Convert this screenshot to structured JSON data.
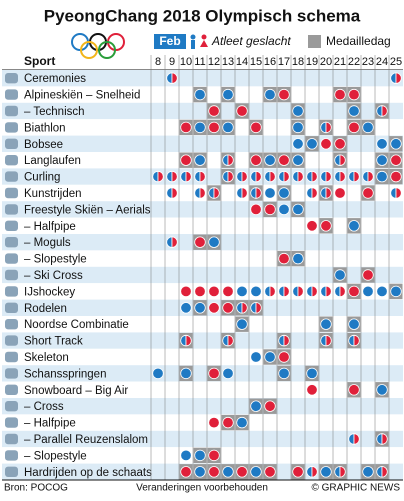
{
  "header": {
    "title": "PyeongChang 2018 Olympisch schema",
    "month": "Feb",
    "legend_gender": "Atleet geslacht",
    "legend_medal": "Medailledag",
    "sport_label": "Sport"
  },
  "days": [
    8,
    9,
    10,
    11,
    12,
    13,
    14,
    15,
    16,
    17,
    18,
    19,
    20,
    21,
    22,
    23,
    24,
    25
  ],
  "colors": {
    "men": "#1f7ac4",
    "women": "#e0203a",
    "medal": "#9a9a9a",
    "row_alt": "#dcebf6"
  },
  "table": {
    "rows": [
      {
        "label": "Ceremonies",
        "events": [
          [
            9,
            "mixed",
            false
          ],
          [
            25,
            "mixed",
            false
          ]
        ]
      },
      {
        "label": "Alpineskiën – Snelheid",
        "events": [
          [
            11,
            "men",
            true
          ],
          [
            13,
            "men",
            true
          ],
          [
            16,
            "men",
            true
          ],
          [
            17,
            "women",
            true
          ],
          [
            21,
            "women",
            true
          ],
          [
            22,
            "women",
            true
          ]
        ]
      },
      {
        "label": "– Technisch",
        "events": [
          [
            12,
            "women",
            true
          ],
          [
            14,
            "women",
            true
          ],
          [
            18,
            "men",
            true
          ],
          [
            22,
            "men",
            true
          ],
          [
            24,
            "mixed",
            true
          ]
        ]
      },
      {
        "label": "Biathlon",
        "events": [
          [
            10,
            "women",
            true
          ],
          [
            11,
            "men",
            true
          ],
          [
            12,
            "women",
            true
          ],
          [
            13,
            "men",
            true
          ],
          [
            15,
            "women",
            true
          ],
          [
            18,
            "men",
            true
          ],
          [
            20,
            "mixed",
            true
          ],
          [
            22,
            "women",
            true
          ],
          [
            23,
            "men",
            true
          ]
        ]
      },
      {
        "label": "Bobsee",
        "events": [
          [
            18,
            "men",
            false
          ],
          [
            19,
            "men",
            true
          ],
          [
            20,
            "women",
            false
          ],
          [
            21,
            "women",
            true
          ],
          [
            24,
            "men",
            false
          ],
          [
            25,
            "men",
            true
          ]
        ]
      },
      {
        "label": "Langlaufen",
        "events": [
          [
            10,
            "women",
            true
          ],
          [
            11,
            "men",
            true
          ],
          [
            13,
            "mixed",
            true
          ],
          [
            15,
            "women",
            true
          ],
          [
            16,
            "men",
            true
          ],
          [
            17,
            "women",
            true
          ],
          [
            18,
            "men",
            true
          ],
          [
            21,
            "mixed",
            true
          ],
          [
            24,
            "men",
            true
          ],
          [
            25,
            "women",
            true
          ]
        ]
      },
      {
        "label": "Curling",
        "events": [
          [
            8,
            "mixed",
            false
          ],
          [
            9,
            "mixed",
            false
          ],
          [
            10,
            "mixed",
            false
          ],
          [
            11,
            "mixed",
            false
          ],
          [
            13,
            "mixed",
            true
          ],
          [
            14,
            "mixed",
            false
          ],
          [
            15,
            "mixed",
            false
          ],
          [
            16,
            "mixed",
            false
          ],
          [
            17,
            "mixed",
            false
          ],
          [
            18,
            "mixed",
            false
          ],
          [
            19,
            "mixed",
            false
          ],
          [
            20,
            "mixed",
            false
          ],
          [
            21,
            "mixed",
            false
          ],
          [
            22,
            "mixed",
            false
          ],
          [
            23,
            "mixed",
            false
          ],
          [
            24,
            "men",
            true
          ],
          [
            25,
            "women",
            true
          ]
        ]
      },
      {
        "label": "Kunstrijden",
        "events": [
          [
            9,
            "mixed",
            false
          ],
          [
            11,
            "mixed",
            false
          ],
          [
            12,
            "mixed",
            true
          ],
          [
            14,
            "mixed",
            false
          ],
          [
            15,
            "mixed",
            true
          ],
          [
            16,
            "men",
            false
          ],
          [
            17,
            "men",
            true
          ],
          [
            19,
            "mixed",
            false
          ],
          [
            20,
            "mixed",
            true
          ],
          [
            21,
            "women",
            false
          ],
          [
            23,
            "women",
            true
          ],
          [
            25,
            "mixed",
            false
          ]
        ]
      },
      {
        "label": "Freestyle Skiën – Aerials",
        "events": [
          [
            15,
            "women",
            false
          ],
          [
            16,
            "women",
            true
          ],
          [
            17,
            "men",
            false
          ],
          [
            18,
            "men",
            true
          ]
        ]
      },
      {
        "label": "– Halfpipe",
        "events": [
          [
            19,
            "women",
            false
          ],
          [
            20,
            "women",
            true
          ],
          [
            22,
            "men",
            true
          ]
        ]
      },
      {
        "label": "– Moguls",
        "events": [
          [
            9,
            "mixed",
            false
          ],
          [
            11,
            "women",
            true
          ],
          [
            12,
            "men",
            true
          ]
        ]
      },
      {
        "label": "– Slopestyle",
        "events": [
          [
            17,
            "women",
            true
          ],
          [
            18,
            "men",
            true
          ]
        ]
      },
      {
        "label": "– Ski Cross",
        "events": [
          [
            21,
            "men",
            true
          ],
          [
            23,
            "women",
            true
          ]
        ]
      },
      {
        "label": "IJshockey",
        "events": [
          [
            10,
            "women",
            false
          ],
          [
            11,
            "women",
            false
          ],
          [
            12,
            "women",
            false
          ],
          [
            13,
            "women",
            false
          ],
          [
            14,
            "men",
            false
          ],
          [
            15,
            "men",
            false
          ],
          [
            16,
            "mixed",
            false
          ],
          [
            17,
            "mixed",
            false
          ],
          [
            18,
            "mixed",
            false
          ],
          [
            19,
            "mixed",
            false
          ],
          [
            20,
            "mixed",
            false
          ],
          [
            21,
            "mixed",
            false
          ],
          [
            22,
            "women",
            true
          ],
          [
            23,
            "men",
            false
          ],
          [
            24,
            "men",
            false
          ],
          [
            25,
            "men",
            true
          ]
        ]
      },
      {
        "label": "Rodelen",
        "events": [
          [
            10,
            "men",
            false
          ],
          [
            11,
            "men",
            true
          ],
          [
            12,
            "women",
            false
          ],
          [
            13,
            "women",
            true
          ],
          [
            14,
            "mixed",
            true
          ],
          [
            15,
            "mixed",
            true
          ]
        ]
      },
      {
        "label": "Noordse Combinatie",
        "events": [
          [
            14,
            "men",
            true
          ],
          [
            20,
            "men",
            true
          ],
          [
            22,
            "men",
            true
          ]
        ]
      },
      {
        "label": "Short Track",
        "events": [
          [
            10,
            "mixed",
            true
          ],
          [
            13,
            "mixed",
            true
          ],
          [
            17,
            "mixed",
            true
          ],
          [
            20,
            "mixed",
            true
          ],
          [
            22,
            "mixed",
            true
          ]
        ]
      },
      {
        "label": "Skeleton",
        "events": [
          [
            15,
            "men",
            false
          ],
          [
            16,
            "men",
            true
          ],
          [
            17,
            "women",
            true
          ]
        ]
      },
      {
        "label": "Schansspringen",
        "events": [
          [
            8,
            "men",
            false
          ],
          [
            10,
            "men",
            true
          ],
          [
            12,
            "women",
            true
          ],
          [
            13,
            "men",
            false
          ],
          [
            17,
            "men",
            true
          ],
          [
            19,
            "men",
            true
          ]
        ]
      },
      {
        "label": "Snowboard – Big Air",
        "events": [
          [
            19,
            "women",
            false
          ],
          [
            22,
            "women",
            true
          ],
          [
            24,
            "men",
            true
          ]
        ]
      },
      {
        "label": "– Cross",
        "events": [
          [
            15,
            "men",
            true
          ],
          [
            16,
            "women",
            true
          ]
        ]
      },
      {
        "label": "– Halfpipe",
        "events": [
          [
            12,
            "women",
            false
          ],
          [
            13,
            "women",
            true
          ],
          [
            14,
            "men",
            true
          ]
        ]
      },
      {
        "label": "– Parallel Reuzenslalom",
        "events": [
          [
            22,
            "mixed",
            false
          ],
          [
            24,
            "mixed",
            true
          ]
        ]
      },
      {
        "label": "– Slopestyle",
        "events": [
          [
            10,
            "men",
            false
          ],
          [
            11,
            "men",
            true
          ],
          [
            12,
            "women",
            true
          ]
        ]
      },
      {
        "label": "Hardrijden op de schaats",
        "events": [
          [
            10,
            "women",
            true
          ],
          [
            11,
            "men",
            true
          ],
          [
            12,
            "women",
            true
          ],
          [
            13,
            "men",
            true
          ],
          [
            14,
            "women",
            true
          ],
          [
            15,
            "men",
            true
          ],
          [
            16,
            "women",
            true
          ],
          [
            18,
            "women",
            true
          ],
          [
            19,
            "mixed",
            false
          ],
          [
            20,
            "men",
            true
          ],
          [
            21,
            "mixed",
            true
          ],
          [
            23,
            "men",
            true
          ],
          [
            24,
            "mixed",
            true
          ]
        ]
      }
    ]
  },
  "footer": {
    "source": "Bron: POCOG",
    "note": "Veranderingen voorbehouden",
    "credit": "© GRAPHIC NEWS"
  }
}
